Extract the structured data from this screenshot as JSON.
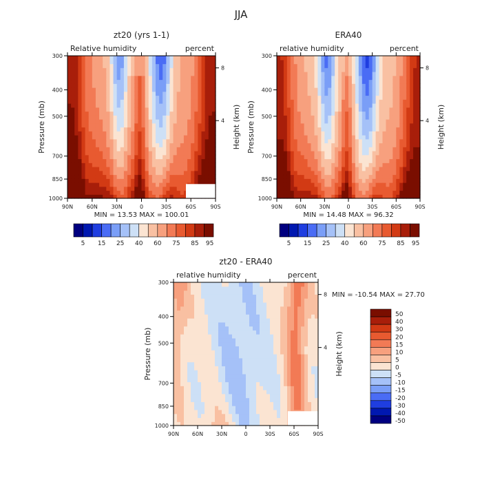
{
  "page": {
    "title": "JJA"
  },
  "colors": {
    "full": [
      "#000080",
      "#0018b0",
      "#1f3ee0",
      "#4a6cf5",
      "#7a9ef7",
      "#a5c1f8",
      "#cde0f6",
      "#fbe4d2",
      "#f9c0a2",
      "#f7a07e",
      "#f27a55",
      "#e85a30",
      "#d23a14",
      "#a81e0a",
      "#7a0e00"
    ],
    "diff": [
      "#000080",
      "#0018b0",
      "#1f3ee0",
      "#4a6cf5",
      "#7a9ef7",
      "#a5c1f8",
      "#cde0f6",
      "#fbe4d2",
      "#f9c0a2",
      "#f7a07e",
      "#f27a55",
      "#e85a30",
      "#d23a14",
      "#a81e0a",
      "#7a0e00"
    ]
  },
  "chart_data": [
    {
      "type": "heatmap",
      "title": "zt20 (yrs 1-1)",
      "left_title": "Relative humidity",
      "right_title": "percent",
      "ylabel": "Pressure (mb)",
      "ylabel_right": "Height (km)",
      "x_ticks": [
        "90N",
        "60N",
        "30N",
        "0",
        "30S",
        "60S",
        "90S"
      ],
      "y_ticks": [
        "300",
        "400",
        "500",
        "700",
        "850",
        "1000"
      ],
      "y_right_ticks": [
        "8",
        "4"
      ],
      "stats": "MIN =   13.53   MAX = 100.01",
      "levels": [
        "5",
        "15",
        "25",
        "40",
        "60",
        "75",
        "85",
        "95"
      ],
      "ylim": [
        1000,
        300
      ],
      "grid": false
    },
    {
      "type": "heatmap",
      "title": "ERA40",
      "left_title": "relative humidity",
      "right_title": "percent",
      "ylabel": "Pressure (mb)",
      "ylabel_right": "Height (km)",
      "x_ticks": [
        "90N",
        "60N",
        "30N",
        "0",
        "30S",
        "60S",
        "90S"
      ],
      "y_ticks": [
        "300",
        "400",
        "500",
        "700",
        "850",
        "1000"
      ],
      "y_right_ticks": [
        "8",
        "4"
      ],
      "stats": "MIN =   14.48   MAX =  96.32",
      "levels": [
        "5",
        "15",
        "25",
        "40",
        "60",
        "75",
        "85",
        "95"
      ],
      "ylim": [
        1000,
        300
      ],
      "grid": false
    },
    {
      "type": "heatmap",
      "title": "zt20 - ERA40",
      "left_title": "relative humidity",
      "right_title": "percent",
      "ylabel": "Pressure (mb)",
      "ylabel_right": "Height (km)",
      "x_ticks": [
        "90N",
        "60N",
        "30N",
        "0",
        "30S",
        "60S",
        "90S"
      ],
      "y_ticks": [
        "300",
        "400",
        "500",
        "700",
        "850",
        "1000"
      ],
      "y_right_ticks": [
        "8",
        "4"
      ],
      "stats": "MIN = -10.54   MAX =  27.70",
      "levels": [
        "50",
        "40",
        "30",
        "20",
        "15",
        "10",
        "5",
        "0",
        "-5",
        "-10",
        "-15",
        "-20",
        "-30",
        "-40",
        "-50"
      ],
      "ylim": [
        1000,
        300
      ],
      "grid": false
    }
  ]
}
